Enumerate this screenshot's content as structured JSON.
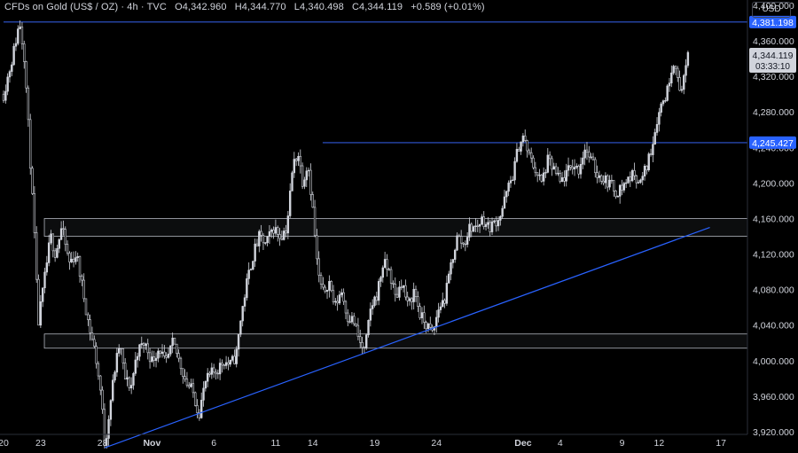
{
  "header": {
    "symbol": "CFDs on Gold (US$ / OZ) · 4h · TVC",
    "open_label": "O",
    "open": "4,342.960",
    "high_label": "H",
    "high": "4,344.770",
    "low_label": "L",
    "low": "4,340.498",
    "close_label": "C",
    "close": "4,344.119",
    "change": "+0.589 (+0.01%)"
  },
  "currency": "USD",
  "colors": {
    "background": "#000000",
    "candle": "#d1d4dc",
    "trendline": "#2962ff",
    "level": "#3158d6",
    "zone": "#b2b5be",
    "text": "#d1d4dc"
  },
  "chart_data": {
    "type": "candlestick",
    "title": "",
    "xlabel": "",
    "ylabel": "",
    "ylim": [
      3896,
      4406
    ],
    "y_ticks": [
      "4,400.000",
      "4,360.000",
      "4,320.000",
      "4,280.000",
      "4,240.000",
      "4,200.000",
      "4,160.000",
      "4,120.000",
      "4,080.000",
      "4,040.000",
      "4,000.000",
      "3,960.000",
      "3,920.000"
    ],
    "y_tick_values": [
      4400,
      4360,
      4320,
      4280,
      4240,
      4200,
      4160,
      4120,
      4080,
      4040,
      4000,
      3960,
      3920
    ],
    "x_ticks": [
      {
        "label": "20",
        "day": 0
      },
      {
        "label": "23",
        "day": 3
      },
      {
        "label": "28",
        "day": 8
      },
      {
        "label": "Nov",
        "day": 12
      },
      {
        "label": "6",
        "day": 17
      },
      {
        "label": "11",
        "day": 22
      },
      {
        "label": "14",
        "day": 25
      },
      {
        "label": "19",
        "day": 30
      },
      {
        "label": "24",
        "day": 35
      },
      {
        "label": "Dec",
        "day": 42
      },
      {
        "label": "4",
        "day": 45
      },
      {
        "label": "9",
        "day": 50
      },
      {
        "label": "12",
        "day": 53
      },
      {
        "label": "17",
        "day": 58
      }
    ],
    "price_labels": [
      {
        "value": 4381.198,
        "label": "4,381.198"
      },
      {
        "value": 4245.427,
        "label": "4,245.427"
      }
    ],
    "last_price": {
      "value": 4344.119,
      "label": "4,344.119",
      "countdown": "03:33:10"
    },
    "horizontal_levels": [
      4381.198,
      4245.427
    ],
    "zones": [
      [
        4140,
        4160
      ],
      [
        4014,
        4030
      ]
    ],
    "trendline": {
      "start": [
        8.2,
        3902
      ],
      "end": [
        57.1,
        4150
      ]
    },
    "path": [
      [
        0,
        4300
      ],
      [
        0.7,
        4340
      ],
      [
        1.3,
        4382
      ],
      [
        1.7,
        4340
      ],
      [
        2.1,
        4240
      ],
      [
        2.5,
        4140
      ],
      [
        2.8,
        4040
      ],
      [
        3.2,
        4080
      ],
      [
        3.8,
        4140
      ],
      [
        4.2,
        4120
      ],
      [
        4.7,
        4150
      ],
      [
        5.3,
        4110
      ],
      [
        5.9,
        4120
      ],
      [
        6.4,
        4080
      ],
      [
        6.9,
        4040
      ],
      [
        7.4,
        4010
      ],
      [
        7.9,
        3960
      ],
      [
        8.2,
        3902
      ],
      [
        8.6,
        3950
      ],
      [
        9.0,
        3990
      ],
      [
        9.4,
        4020
      ],
      [
        9.8,
        3980
      ],
      [
        10.3,
        3970
      ],
      [
        10.8,
        4010
      ],
      [
        11.4,
        4020
      ],
      [
        12.0,
        4000
      ],
      [
        12.6,
        4015
      ],
      [
        13.1,
        3995
      ],
      [
        13.7,
        4020
      ],
      [
        14.2,
        4000
      ],
      [
        14.8,
        3975
      ],
      [
        15.3,
        3965
      ],
      [
        15.8,
        3940
      ],
      [
        16.3,
        3975
      ],
      [
        16.8,
        3985
      ],
      [
        17.3,
        3990
      ],
      [
        17.8,
        4000
      ],
      [
        18.3,
        3995
      ],
      [
        18.8,
        4005
      ],
      [
        19.2,
        4050
      ],
      [
        19.7,
        4090
      ],
      [
        20.2,
        4120
      ],
      [
        20.7,
        4140
      ],
      [
        21.2,
        4130
      ],
      [
        21.8,
        4150
      ],
      [
        22.4,
        4140
      ],
      [
        22.9,
        4150
      ],
      [
        23.4,
        4220
      ],
      [
        23.8,
        4235
      ],
      [
        24.2,
        4200
      ],
      [
        24.6,
        4225
      ],
      [
        25.0,
        4170
      ],
      [
        25.4,
        4100
      ],
      [
        25.8,
        4075
      ],
      [
        26.3,
        4090
      ],
      [
        26.8,
        4060
      ],
      [
        27.3,
        4080
      ],
      [
        27.8,
        4050
      ],
      [
        28.3,
        4045
      ],
      [
        28.8,
        4020
      ],
      [
        29.2,
        4010
      ],
      [
        29.7,
        4060
      ],
      [
        30.2,
        4075
      ],
      [
        30.7,
        4110
      ],
      [
        31.2,
        4100
      ],
      [
        31.7,
        4070
      ],
      [
        32.2,
        4090
      ],
      [
        32.7,
        4060
      ],
      [
        33.2,
        4080
      ],
      [
        33.7,
        4050
      ],
      [
        34.2,
        4040
      ],
      [
        34.7,
        4030
      ],
      [
        35.2,
        4060
      ],
      [
        35.7,
        4070
      ],
      [
        36.2,
        4110
      ],
      [
        36.7,
        4140
      ],
      [
        37.2,
        4130
      ],
      [
        37.7,
        4150
      ],
      [
        38.2,
        4150
      ],
      [
        38.7,
        4160
      ],
      [
        39.2,
        4150
      ],
      [
        39.7,
        4155
      ],
      [
        40.2,
        4165
      ],
      [
        40.7,
        4190
      ],
      [
        41.2,
        4210
      ],
      [
        41.6,
        4240
      ],
      [
        42.0,
        4252
      ],
      [
        42.5,
        4230
      ],
      [
        43.0,
        4215
      ],
      [
        43.5,
        4200
      ],
      [
        44.0,
        4225
      ],
      [
        44.5,
        4215
      ],
      [
        45.0,
        4200
      ],
      [
        45.5,
        4210
      ],
      [
        46.0,
        4220
      ],
      [
        46.5,
        4215
      ],
      [
        47.0,
        4240
      ],
      [
        47.5,
        4225
      ],
      [
        48.0,
        4210
      ],
      [
        48.5,
        4205
      ],
      [
        49.0,
        4200
      ],
      [
        49.5,
        4190
      ],
      [
        50.0,
        4195
      ],
      [
        50.5,
        4205
      ],
      [
        51.0,
        4210
      ],
      [
        51.5,
        4200
      ],
      [
        52.0,
        4220
      ],
      [
        52.4,
        4240
      ],
      [
        52.8,
        4270
      ],
      [
        53.2,
        4290
      ],
      [
        53.6,
        4300
      ],
      [
        54.0,
        4330
      ],
      [
        54.3,
        4340
      ],
      [
        54.6,
        4300
      ],
      [
        55.0,
        4320
      ],
      [
        55.4,
        4344
      ]
    ],
    "grid": false,
    "legend": "none"
  }
}
